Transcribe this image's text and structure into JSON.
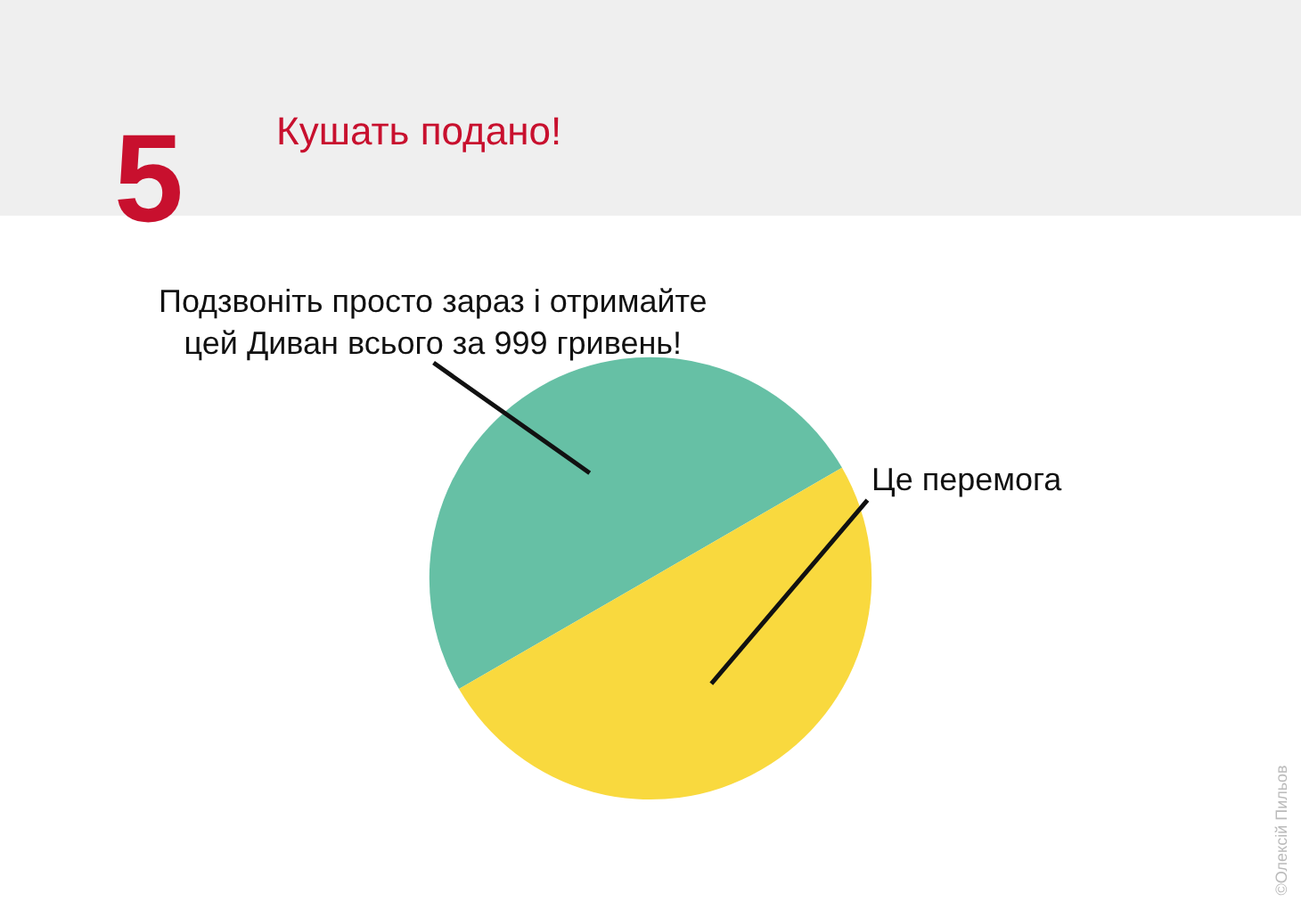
{
  "chart_data": {
    "type": "pie",
    "title": "Кушать подано!",
    "categories": [
      "Подзвоніть просто зараз і отримайте цей Диван всього за 999 гривень!",
      "Це перемога"
    ],
    "values": [
      50,
      50
    ],
    "colors": [
      "#66c0a5",
      "#f9d93e"
    ],
    "annotations": [
      "5",
      "©Олексій Пильов"
    ],
    "legend": false
  }
}
